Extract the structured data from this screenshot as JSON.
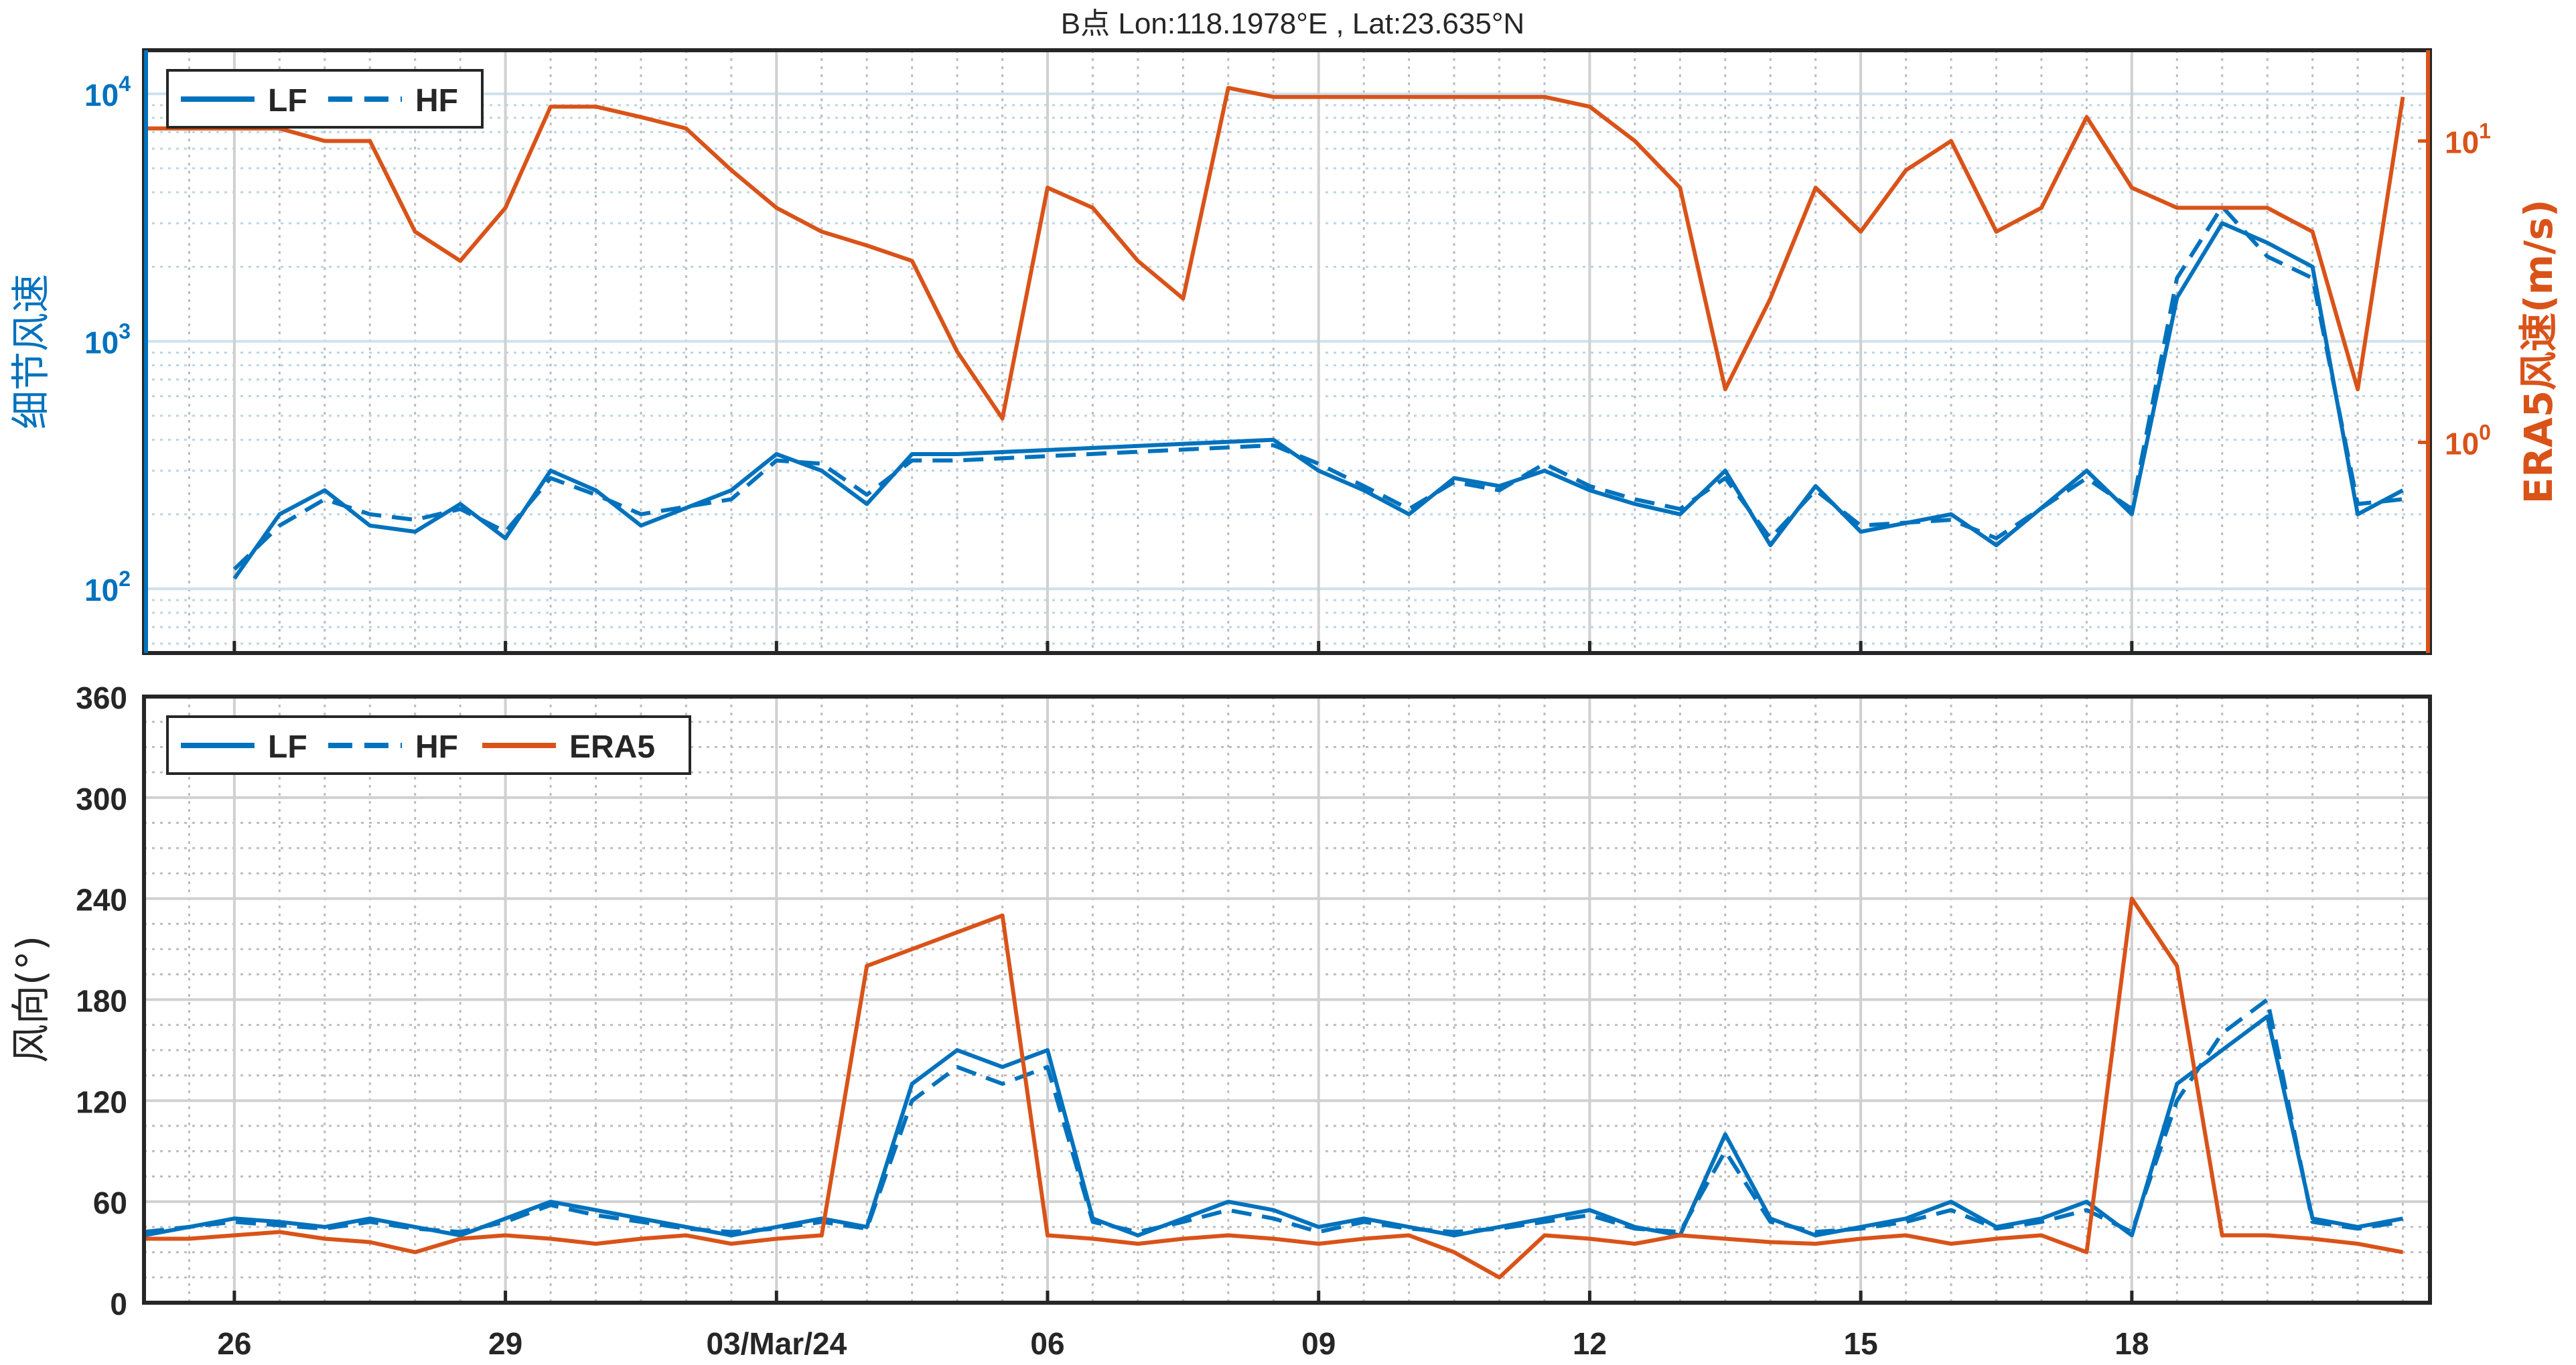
{
  "title": "B点   Lon:118.1978°E , Lat:23.635°N",
  "colors": {
    "lf": "#0072BD",
    "hf": "#0072BD",
    "era5": "#D95319",
    "axis": "#262626",
    "grid": "#a9a9a9",
    "minor": "#b9d6e6"
  },
  "chart_data": [
    {
      "type": "line",
      "title": "B点   Lon:118.1978°E , Lat:23.635°N",
      "ylabel_left": "细节风速",
      "ylabel_right": "ERA5风速(m/s)",
      "ylim_left": [
        55,
        15000
      ],
      "ylim_right": [
        0.2,
        20
      ],
      "yscale": "log",
      "xlim_days": [
        0,
        25.3
      ],
      "xticks": [
        "26",
        "29",
        "03/Mar/24",
        "06",
        "09",
        "12",
        "15",
        "18"
      ],
      "yticks_left": [
        "10^2",
        "10^3",
        "10^4"
      ],
      "yticks_right": [
        "10^0",
        "10^1"
      ],
      "legend": {
        "position": "top-left",
        "entries": [
          "LF",
          "HF"
        ]
      },
      "grid": true,
      "series": [
        {
          "name": "LF",
          "axis": "left",
          "style": "solid",
          "x": [
            1.0,
            1.5,
            2.0,
            2.5,
            3.0,
            3.5,
            4.0,
            4.5,
            5.0,
            5.5,
            6.5,
            7.0,
            7.5,
            8.0,
            8.5,
            9.0,
            12.5,
            13.0,
            13.5,
            14.0,
            14.5,
            15.0,
            15.5,
            16.0,
            16.5,
            17.0,
            17.5,
            18.0,
            18.5,
            19.0,
            20.0,
            20.5,
            21.5,
            22.0,
            22.5,
            23.0,
            23.5,
            24.0,
            24.5,
            25.0
          ],
          "y": [
            110,
            200,
            250,
            180,
            170,
            220,
            160,
            300,
            250,
            180,
            250,
            350,
            300,
            220,
            350,
            350,
            400,
            300,
            250,
            200,
            280,
            260,
            300,
            250,
            220,
            200,
            300,
            150,
            260,
            170,
            200,
            150,
            300,
            200,
            1500,
            3000,
            2500,
            2000,
            200,
            250
          ]
        },
        {
          "name": "HF",
          "axis": "left",
          "style": "dashed",
          "x": [
            1.0,
            1.5,
            2.0,
            2.5,
            3.0,
            3.5,
            4.0,
            4.5,
            5.0,
            5.5,
            6.5,
            7.0,
            7.5,
            8.0,
            8.5,
            9.0,
            12.5,
            13.0,
            13.5,
            14.0,
            14.5,
            15.0,
            15.5,
            16.0,
            16.5,
            17.0,
            17.5,
            18.0,
            18.5,
            19.0,
            20.0,
            20.5,
            21.5,
            22.0,
            22.5,
            23.0,
            23.5,
            24.0,
            24.5,
            25.0
          ],
          "y": [
            120,
            180,
            230,
            200,
            190,
            210,
            170,
            280,
            240,
            200,
            230,
            330,
            320,
            240,
            330,
            330,
            380,
            320,
            260,
            210,
            270,
            250,
            320,
            260,
            230,
            210,
            280,
            160,
            250,
            180,
            190,
            160,
            280,
            210,
            1800,
            3500,
            2200,
            1800,
            220,
            230
          ]
        },
        {
          "name": "ERA5",
          "axis": "right",
          "style": "solid",
          "x": [
            0,
            0.5,
            1,
            1.5,
            2,
            2.5,
            3,
            3.5,
            4,
            4.5,
            5,
            5.5,
            6,
            6.5,
            7,
            7.5,
            8,
            8.5,
            9,
            9.5,
            10,
            10.5,
            11,
            11.5,
            12,
            12.5,
            13,
            13.5,
            14,
            14.5,
            15,
            15.5,
            16,
            16.5,
            17,
            17.5,
            18,
            18.5,
            19,
            19.5,
            20,
            20.5,
            21,
            21.5,
            22,
            22.5,
            23,
            23.5,
            24,
            24.5,
            25
          ],
          "y": [
            11,
            11,
            11,
            11,
            10,
            10,
            5,
            4,
            6,
            13,
            13,
            12,
            11,
            8,
            6,
            5,
            4.5,
            4,
            2,
            1.2,
            7,
            6,
            4,
            3,
            15,
            14,
            14,
            14,
            14,
            14,
            14,
            14,
            13,
            10,
            7,
            1.5,
            3,
            7,
            5,
            8,
            10,
            5,
            6,
            12,
            7,
            6,
            6,
            6,
            5,
            1.5,
            14
          ]
        }
      ]
    },
    {
      "type": "line",
      "ylabel": "风向(°)",
      "ylim": [
        0,
        360
      ],
      "xlim_days": [
        0,
        25.3
      ],
      "xticks": [
        "26",
        "29",
        "03/Mar/24",
        "06",
        "09",
        "12",
        "15",
        "18"
      ],
      "yticks": [
        "0",
        "60",
        "120",
        "180",
        "240",
        "300",
        "360"
      ],
      "legend": {
        "position": "top-left",
        "entries": [
          "LF",
          "HF",
          "ERA5"
        ]
      },
      "grid": true,
      "series": [
        {
          "name": "LF",
          "style": "solid",
          "x": [
            0,
            1,
            1.5,
            2,
            2.5,
            3,
            3.5,
            4,
            4.5,
            5,
            5.5,
            6,
            6.5,
            7,
            7.5,
            8,
            8.5,
            9,
            9.5,
            10,
            10.5,
            11,
            11.5,
            12,
            12.5,
            13,
            13.5,
            14,
            14.5,
            15,
            15.5,
            16,
            16.5,
            17,
            17.5,
            18,
            18.5,
            19,
            19.5,
            20,
            20.5,
            21,
            21.5,
            22,
            22.5,
            23,
            23.5,
            24,
            24.5,
            25
          ],
          "y": [
            40,
            50,
            48,
            45,
            50,
            45,
            40,
            50,
            60,
            55,
            50,
            45,
            40,
            45,
            50,
            45,
            130,
            150,
            140,
            150,
            50,
            40,
            50,
            60,
            55,
            45,
            50,
            45,
            40,
            45,
            50,
            55,
            45,
            40,
            100,
            50,
            40,
            45,
            50,
            60,
            45,
            50,
            60,
            40,
            130,
            150,
            170,
            50,
            45,
            50
          ]
        },
        {
          "name": "HF",
          "style": "dashed",
          "x": [
            0,
            1,
            1.5,
            2,
            2.5,
            3,
            3.5,
            4,
            4.5,
            5,
            5.5,
            6,
            6.5,
            7,
            7.5,
            8,
            8.5,
            9,
            9.5,
            10,
            10.5,
            11,
            11.5,
            12,
            12.5,
            13,
            13.5,
            14,
            14.5,
            15,
            15.5,
            16,
            16.5,
            17,
            17.5,
            18,
            18.5,
            19,
            19.5,
            20,
            20.5,
            21,
            21.5,
            22,
            22.5,
            23,
            23.5,
            24,
            24.5,
            25
          ],
          "y": [
            42,
            48,
            46,
            44,
            48,
            44,
            42,
            48,
            58,
            52,
            48,
            44,
            42,
            44,
            48,
            44,
            120,
            140,
            130,
            140,
            48,
            42,
            48,
            55,
            50,
            42,
            48,
            44,
            42,
            44,
            48,
            52,
            44,
            42,
            90,
            48,
            42,
            44,
            48,
            55,
            44,
            48,
            55,
            42,
            120,
            160,
            180,
            48,
            44,
            48
          ]
        },
        {
          "name": "ERA5",
          "style": "solid",
          "x": [
            0,
            0.5,
            1,
            1.5,
            2,
            2.5,
            3,
            3.5,
            4,
            4.5,
            5,
            5.5,
            6,
            6.5,
            7,
            7.5,
            8,
            8.5,
            9,
            9.5,
            10,
            10.5,
            11,
            11.5,
            12,
            12.5,
            13,
            13.5,
            14,
            14.5,
            15,
            15.5,
            16,
            16.5,
            17,
            17.5,
            18,
            18.5,
            19,
            19.5,
            20,
            20.5,
            21,
            21.5,
            22,
            22.5,
            23,
            23.5,
            24,
            24.5,
            25
          ],
          "y": [
            38,
            38,
            40,
            42,
            38,
            36,
            30,
            38,
            40,
            38,
            35,
            38,
            40,
            35,
            38,
            40,
            200,
            210,
            220,
            230,
            40,
            38,
            35,
            38,
            40,
            38,
            35,
            38,
            40,
            30,
            15,
            40,
            38,
            35,
            40,
            38,
            36,
            35,
            38,
            40,
            35,
            38,
            40,
            30,
            240,
            200,
            40,
            40,
            38,
            35,
            30
          ]
        }
      ]
    }
  ]
}
